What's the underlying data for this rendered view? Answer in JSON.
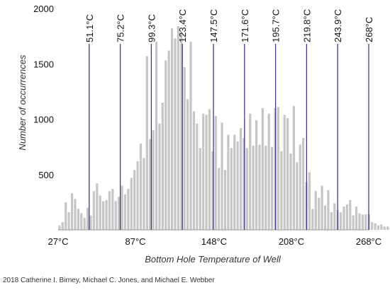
{
  "chart_data": {
    "type": "bar",
    "xlabel": "Bottom Hole Temperature of Well",
    "ylabel": "Number of occurrences",
    "xlim": [
      27,
      268
    ],
    "ylim": [
      0,
      2000
    ],
    "x_ticks": [
      27,
      87,
      148,
      208,
      268
    ],
    "x_tick_labels": [
      "27°C",
      "87°C",
      "148°C",
      "208°C",
      "268°C"
    ],
    "y_ticks": [
      500,
      1000,
      1500,
      2000
    ],
    "y_tick_labels": [
      "500",
      "1000",
      "1500",
      "2000"
    ],
    "bar_color": "#c6c6c6",
    "marker_color": "#3b3b8f",
    "bin_start": 27,
    "bin_width": 2.425,
    "values": [
      40,
      70,
      250,
      160,
      330,
      280,
      190,
      150,
      110,
      200,
      130,
      350,
      420,
      310,
      260,
      270,
      350,
      370,
      260,
      300,
      400,
      320,
      370,
      470,
      540,
      620,
      780,
      650,
      1570,
      820,
      900,
      1700,
      960,
      1150,
      1530,
      1620,
      1820,
      1730,
      1840,
      1790,
      1470,
      1180,
      1700,
      1070,
      960,
      740,
      1050,
      1040,
      1090,
      710,
      1030,
      560,
      970,
      540,
      860,
      740,
      860,
      800,
      920,
      830,
      740,
      1050,
      760,
      990,
      770,
      1100,
      760,
      1050,
      750,
      1100,
      1110,
      710,
      1040,
      1010,
      690,
      1120,
      610,
      770,
      830,
      430,
      520,
      190,
      350,
      290,
      400,
      220,
      360,
      160,
      240,
      180,
      160,
      210,
      230,
      270,
      130,
      210,
      150,
      140,
      140,
      140,
      70,
      60,
      40,
      50,
      30,
      30,
      20,
      20,
      15,
      10,
      10,
      8,
      5,
      4,
      3,
      2,
      2,
      1,
      1,
      1,
      1,
      1,
      1
    ],
    "markers": [
      {
        "x": 51.1,
        "label": "51.1°C"
      },
      {
        "x": 75.2,
        "label": "75.2°C"
      },
      {
        "x": 99.3,
        "label": "99.3°C"
      },
      {
        "x": 123.4,
        "label": "123.4°C"
      },
      {
        "x": 147.5,
        "label": "147.5°C"
      },
      {
        "x": 171.6,
        "label": "171.6°C"
      },
      {
        "x": 195.7,
        "label": "195.7°C"
      },
      {
        "x": 219.8,
        "label": "219.8°C"
      },
      {
        "x": 243.9,
        "label": "243.9°C"
      },
      {
        "x": 268,
        "label": "268°C"
      }
    ]
  },
  "credit": "2018 Catherine I. Birney, Michael C. Jones, and Michael E. Webber"
}
